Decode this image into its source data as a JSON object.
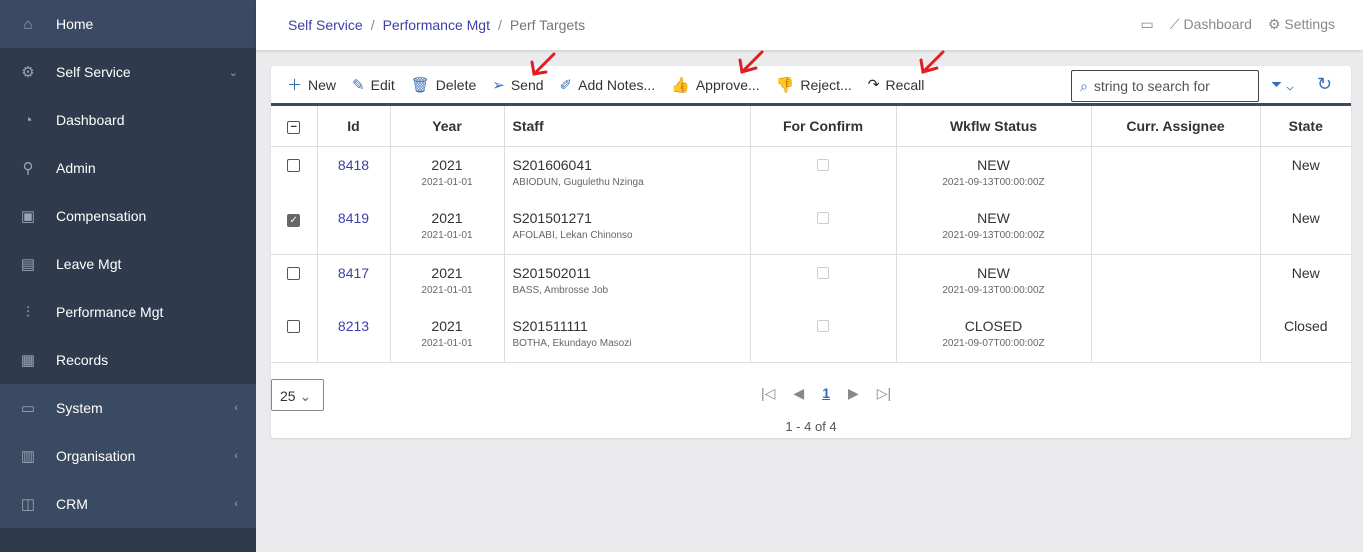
{
  "sidebar": {
    "items": [
      {
        "label": "Home",
        "icon": "home-icon"
      },
      {
        "label": "Self Service",
        "icon": "user-gear-icon",
        "chevron": "down"
      },
      {
        "label": "Dashboard",
        "icon": "gauge-icon"
      },
      {
        "label": "Admin",
        "icon": "admin-icon"
      },
      {
        "label": "Compensation",
        "icon": "money-icon"
      },
      {
        "label": "Leave Mgt",
        "icon": "calendar-icon"
      },
      {
        "label": "Performance Mgt",
        "icon": "chart-icon"
      },
      {
        "label": "Records",
        "icon": "archive-icon"
      },
      {
        "label": "System",
        "icon": "monitor-icon",
        "chevron": "left"
      },
      {
        "label": "Organisation",
        "icon": "building-icon",
        "chevron": "left"
      },
      {
        "label": "CRM",
        "icon": "crm-icon",
        "chevron": "left"
      }
    ]
  },
  "breadcrumb": [
    "Self Service",
    "Performance Mgt",
    "Perf Targets"
  ],
  "header": {
    "dashboard": "Dashboard",
    "settings": "Settings"
  },
  "toolbar": {
    "new": "New",
    "edit": "Edit",
    "delete": "Delete",
    "send": "Send",
    "add_notes": "Add Notes...",
    "approve": "Approve...",
    "reject": "Reject...",
    "recall": "Recall",
    "search_placeholder": "string to search for"
  },
  "table": {
    "columns": [
      "Id",
      "Year",
      "Staff",
      "For Confirm",
      "Wkflw Status",
      "Curr. Assignee",
      "State"
    ],
    "rows": [
      {
        "checked": false,
        "id": "8418",
        "year": "2021",
        "date": "2021-01-01",
        "staff_no": "S201606041",
        "name": "ABIODUN, Gugulethu Nzinga",
        "status": "NEW",
        "status_date": "2021-09-13T00:00:00Z",
        "assignee": "",
        "state": "New"
      },
      {
        "checked": true,
        "id": "8419",
        "year": "2021",
        "date": "2021-01-01",
        "staff_no": "S201501271",
        "name": "AFOLABI, Lekan Chinonso",
        "status": "NEW",
        "status_date": "2021-09-13T00:00:00Z",
        "assignee": "",
        "state": "New"
      },
      {
        "checked": false,
        "id": "8417",
        "year": "2021",
        "date": "2021-01-01",
        "staff_no": "S201502011",
        "name": "BASS, Ambrosse Job",
        "status": "NEW",
        "status_date": "2021-09-13T00:00:00Z",
        "assignee": "",
        "state": "New"
      },
      {
        "checked": false,
        "id": "8213",
        "year": "2021",
        "date": "2021-01-01",
        "staff_no": "S201511111",
        "name": "BOTHA, Ekundayo Masozi",
        "status": "CLOSED",
        "status_date": "2021-09-07T00:00:00Z",
        "assignee": "",
        "state": "Closed"
      }
    ]
  },
  "pager": {
    "page_size": "25",
    "current_page": "1",
    "info": "1 - 4 of 4"
  },
  "colors": {
    "sidebar": "#2f3a4d",
    "sidebar_light": "#3b4a63",
    "link": "#3b3fa8",
    "accent": "#3b6fb5",
    "annotation": "#e02020"
  }
}
